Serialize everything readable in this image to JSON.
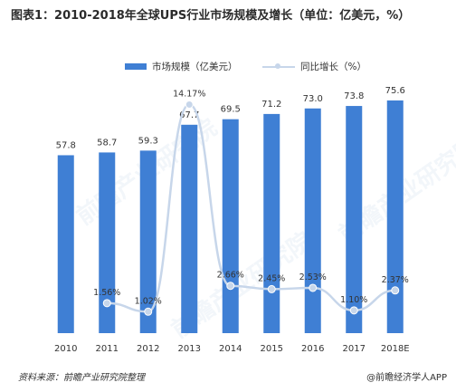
{
  "title": "图表1：2010-2018年全球UPS行业市场规模及增长（单位：亿美元，%）",
  "legend": {
    "bar_label": "市场规模（亿美元）",
    "line_label": "同比增长（%）"
  },
  "colors": {
    "bar": "#3f7fd4",
    "line": "#c7d6ea",
    "marker": "#c7d6ea",
    "text": "#333333"
  },
  "chart_data": {
    "type": "bar",
    "categories": [
      "2010",
      "2011",
      "2012",
      "2013",
      "2014",
      "2015",
      "2016",
      "2017",
      "2018E"
    ],
    "series": [
      {
        "name": "市场规模（亿美元）",
        "type": "bar",
        "values": [
          57.8,
          58.7,
          59.3,
          67.7,
          69.5,
          71.2,
          73.0,
          73.8,
          75.6
        ],
        "labels": [
          "57.8",
          "58.7",
          "59.3",
          "67.7",
          "69.5",
          "71.2",
          "73.0",
          "73.8",
          "75.6"
        ]
      },
      {
        "name": "同比增长（%）",
        "type": "line",
        "values": [
          null,
          1.56,
          1.02,
          14.17,
          2.66,
          2.45,
          2.53,
          1.1,
          2.37
        ],
        "labels": [
          "",
          "1.56%",
          "1.02%",
          "14.17%",
          "2.66%",
          "2.45%",
          "2.53%",
          "1.10%",
          "2.37%"
        ]
      }
    ],
    "bar_axis_range": [
      0,
      80
    ],
    "line_axis_range": [
      0,
      16
    ],
    "grid": false,
    "legend_position": "top"
  },
  "footer": {
    "source": "资料来源：前瞻产业研究院整理",
    "credit": "@前瞻经济学人APP"
  },
  "watermark_text": "前瞻产业研究院"
}
